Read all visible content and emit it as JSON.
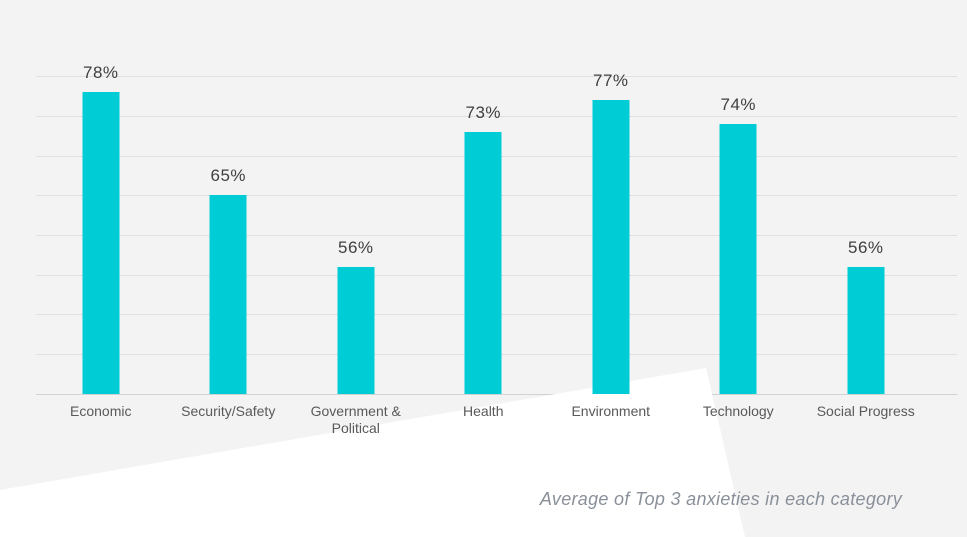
{
  "chart_data": {
    "type": "bar",
    "title": "",
    "xlabel": "",
    "ylabel": "",
    "categories": [
      "Economic",
      "Security/Safety",
      "Government & Political",
      "Health",
      "Environment",
      "Technology",
      "Social Progress"
    ],
    "values": [
      78,
      65,
      56,
      73,
      77,
      74,
      56
    ],
    "value_labels": [
      "78%",
      "65%",
      "56%",
      "73%",
      "77%",
      "74%",
      "56%"
    ],
    "ylim": [
      40,
      80
    ],
    "grid_step": 5,
    "grid": true,
    "legend_position": "none",
    "axis_tick_labels_visible": false,
    "caption": "Average of Top 3 anxieties in each category",
    "colors": {
      "bar": "#00CCD5",
      "background": "#F3F3F3",
      "wedge": "#FFFFFF",
      "gridline": "#E0E0E0",
      "axis_line": "#D2D2D2",
      "value_label": "#3F3F3F",
      "category_label": "#595959",
      "caption": "#8A909A"
    }
  }
}
